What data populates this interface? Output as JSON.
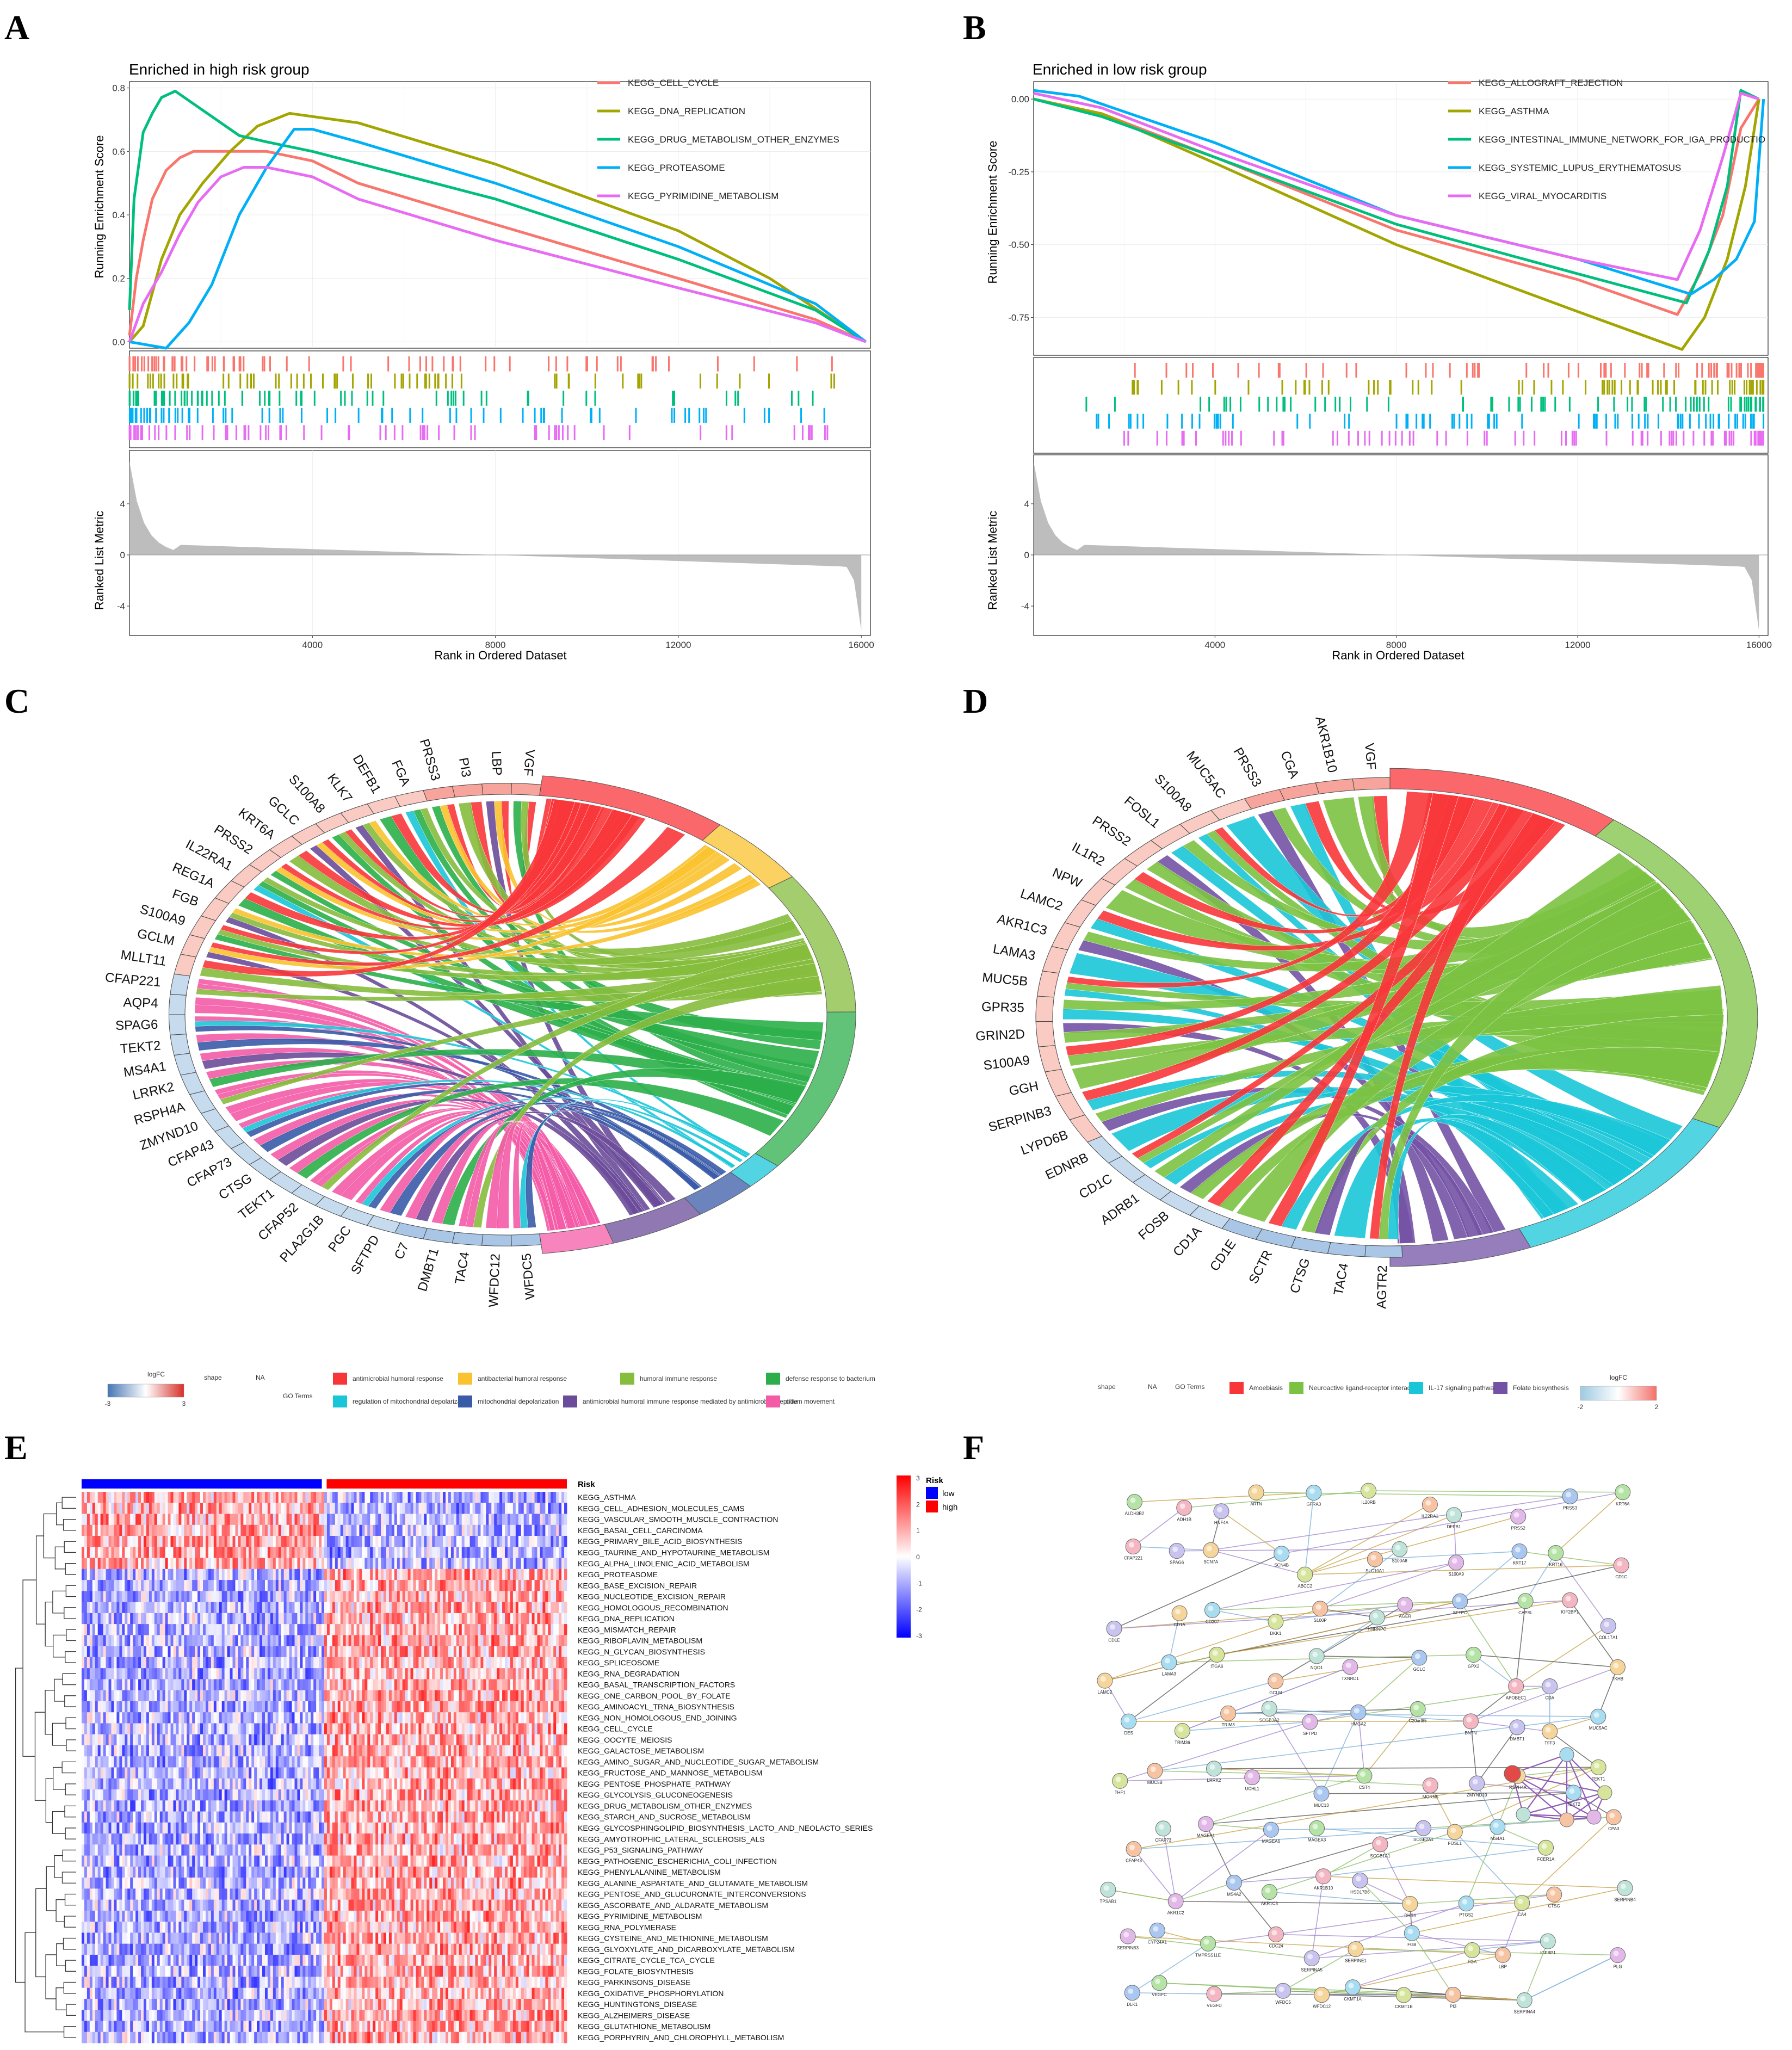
{
  "panels": {
    "A": {
      "letter": "A",
      "title": "Enriched in high risk group",
      "ylabel_es": "Running Enrichment Score",
      "ylabel_rank": "Ranked List Metric",
      "xlabel": "Rank in Ordered Dataset",
      "es_ticks": [
        "0.0",
        "0.2",
        "0.4",
        "0.6",
        "0.8"
      ],
      "rank_ticks": [
        "4",
        "0",
        "-4"
      ],
      "x_ticks": [
        "4000",
        "8000",
        "12000",
        "16000"
      ],
      "legend": [
        "KEGG_CELL_CYCLE",
        "KEGG_DNA_REPLICATION",
        "KEGG_DRUG_METABOLISM_OTHER_ENZYMES",
        "KEGG_PROTEASOME",
        "KEGG_PYRIMIDINE_METABOLISM"
      ]
    },
    "B": {
      "letter": "B",
      "title": "Enriched in low risk group",
      "ylabel_es": "Running Enrichment Score",
      "ylabel_rank": "Ranked List Metric",
      "xlabel": "Rank in Ordered Dataset",
      "es_ticks": [
        "0.00",
        "-0.25",
        "-0.50",
        "-0.75"
      ],
      "rank_ticks": [
        "4",
        "0",
        "-4"
      ],
      "x_ticks": [
        "4000",
        "8000",
        "12000",
        "16000"
      ],
      "legend": [
        "KEGG_ALLOGRAFT_REJECTION",
        "KEGG_ASTHMA",
        "KEGG_INTESTINAL_IMMUNE_NETWORK_FOR_IGA_PRODUCTIO",
        "KEGG_SYSTEMIC_LUPUS_ERYTHEMATOSUS",
        "KEGG_VIRAL_MYOCARDITIS"
      ]
    },
    "C": {
      "letter": "C",
      "genes": [
        "VGF",
        "LBP",
        "PI3",
        "PRSS3",
        "FGA",
        "DEFB1",
        "KLK7",
        "S100A8",
        "GCLC",
        "KRT6A",
        "PRSS2",
        "IL22RA1",
        "REG1A",
        "FGB",
        "S100A9",
        "GCLM",
        "MLLT11",
        "CFAP221",
        "AQP4",
        "SPAG6",
        "TEKT2",
        "MS4A1",
        "LRRK2",
        "RSPH4A",
        "ZMYND10",
        "CFAP43",
        "CFAP73",
        "CTSG",
        "TEKT1",
        "CFAP52",
        "PLA2G1B",
        "PGC",
        "SFTPD",
        "C7",
        "DMBT1",
        "TAC4",
        "WFDC12",
        "WFDC5"
      ],
      "legend_logfc": "logFC",
      "legend_shape": "shape",
      "legend_na": "NA",
      "legend_go": "GO Terms",
      "logfc_min": "-3",
      "logfc_max": "3",
      "terms": [
        "antimicrobial humoral response",
        "antibacterial humoral response",
        "humoral immune response",
        "defense response to bacterium",
        "regulation of mitochondrial depolarization",
        "mitochondrial depolarization",
        "antimicrobial humoral immune response mediated by antimicrobial peptide",
        "cilium movement"
      ]
    },
    "D": {
      "letter": "D",
      "genes": [
        "VGF",
        "AKR1B10",
        "CGA",
        "PRSS3",
        "MUC5AC",
        "S100A8",
        "FOSL1",
        "PRSS2",
        "IL1R2",
        "NPW",
        "LAMC2",
        "AKR1C3",
        "LAMA3",
        "MUC5B",
        "GPR35",
        "GRIN2D",
        "S100A9",
        "GGH",
        "SERPINB3",
        "LYPD6B",
        "EDNRB",
        "CD1C",
        "ADRB1",
        "FOSB",
        "CD1A",
        "CD1E",
        "SCTR",
        "CTSG",
        "TAC4",
        "AGTR2"
      ],
      "legend_shape": "shape",
      "legend_na": "NA",
      "legend_go": "GO Terms",
      "legend_logfc": "logFC",
      "logfc_min": "-2",
      "logfc_max": "2",
      "terms": [
        "Amoebiasis",
        "Neuroactive ligand-receptor interaction",
        "IL-17 signaling pathway",
        "Folate biosynthesis"
      ]
    },
    "E": {
      "letter": "E",
      "risk_label": "Risk",
      "risk_levels": [
        "low",
        "high"
      ],
      "scale_ticks": [
        "3",
        "2",
        "1",
        "0",
        "-1",
        "-2",
        "-3"
      ],
      "pathways": [
        "KEGG_ASTHMA",
        "KEGG_CELL_ADHESION_MOLECULES_CAMS",
        "KEGG_VASCULAR_SMOOTH_MUSCLE_CONTRACTION",
        "KEGG_BASAL_CELL_CARCINOMA",
        "KEGG_PRIMARY_BILE_ACID_BIOSYNTHESIS",
        "KEGG_TAURINE_AND_HYPOTAURINE_METABOLISM",
        "KEGG_ALPHA_LINOLENIC_ACID_METABOLISM",
        "KEGG_PROTEASOME",
        "KEGG_BASE_EXCISION_REPAIR",
        "KEGG_NUCLEOTIDE_EXCISION_REPAIR",
        "KEGG_HOMOLOGOUS_RECOMBINATION",
        "KEGG_DNA_REPLICATION",
        "KEGG_MISMATCH_REPAIR",
        "KEGG_RIBOFLAVIN_METABOLISM",
        "KEGG_N_GLYCAN_BIOSYNTHESIS",
        "KEGG_SPLICEOSOME",
        "KEGG_RNA_DEGRADATION",
        "KEGG_BASAL_TRANSCRIPTION_FACTORS",
        "KEGG_ONE_CARBON_POOL_BY_FOLATE",
        "KEGG_AMINOACYL_TRNA_BIOSYNTHESIS",
        "KEGG_NON_HOMOLOGOUS_END_JOINING",
        "KEGG_CELL_CYCLE",
        "KEGG_OOCYTE_MEIOSIS",
        "KEGG_GALACTOSE_METABOLISM",
        "KEGG_AMINO_SUGAR_AND_NUCLEOTIDE_SUGAR_METABOLISM",
        "KEGG_FRUCTOSE_AND_MANNOSE_METABOLISM",
        "KEGG_PENTOSE_PHOSPHATE_PATHWAY",
        "KEGG_GLYCOLYSIS_GLUCONEOGENESIS",
        "KEGG_DRUG_METABOLISM_OTHER_ENZYMES",
        "KEGG_STARCH_AND_SUCROSE_METABOLISM",
        "KEGG_GLYCOSPHINGOLIPID_BIOSYNTHESIS_LACTO_AND_NEOLACTO_SERIES",
        "KEGG_AMYOTROPHIC_LATERAL_SCLEROSIS_ALS",
        "KEGG_P53_SIGNALING_PATHWAY",
        "KEGG_PATHOGENIC_ESCHERICHIA_COLI_INFECTION",
        "KEGG_PHENYLALANINE_METABOLISM",
        "KEGG_ALANINE_ASPARTATE_AND_GLUTAMATE_METABOLISM",
        "KEGG_PENTOSE_AND_GLUCURONATE_INTERCONVERSIONS",
        "KEGG_ASCORBATE_AND_ALDARATE_METABOLISM",
        "KEGG_PYRIMIDINE_METABOLISM",
        "KEGG_RNA_POLYMERASE",
        "KEGG_CYSTEINE_AND_METHIONINE_METABOLISM",
        "KEGG_GLYOXYLATE_AND_DICARBOXYLATE_METABOLISM",
        "KEGG_CITRATE_CYCLE_TCA_CYCLE",
        "KEGG_FOLATE_BIOSYNTHESIS",
        "KEGG_PARKINSONS_DISEASE",
        "KEGG_OXIDATIVE_PHOSPHORYLATION",
        "KEGG_HUNTINGTONS_DISEASE",
        "KEGG_ALZHEIMERS_DISEASE",
        "KEGG_GLUTATHIONE_METABOLISM",
        "KEGG_PORPHYRIN_AND_CHLOROPHYLL_METABOLISM"
      ]
    },
    "F": {
      "letter": "F",
      "nodes": [
        "ALDH3B2",
        "ADH1B",
        "HNF4A",
        "ARTN",
        "GFRA3",
        "IL20RB",
        "IL22RA1",
        "DEFB1",
        "PRSS2",
        "PRSS3",
        "KRT6A",
        "CFAP221",
        "SPAG6",
        "SCN7A",
        "SCN4B",
        "ABCC2",
        "SLC10A1",
        "S100A8",
        "S100A9",
        "KRT17",
        "KRT16",
        "CD1C",
        "CD1E",
        "CD1A",
        "CD207",
        "DKK1",
        "S100P",
        "HNRNPC",
        "AGER",
        "SFTPC",
        "CAPSL",
        "IGF2BP1",
        "COL17A1",
        "LAMC2",
        "LAMA3",
        "ITGA6",
        "GCLM",
        "NQO1",
        "TXNRD1",
        "GCLC",
        "GPX2",
        "APOBEC1",
        "CDA",
        "TKHB",
        "DES",
        "TRIM36",
        "TRIM3",
        "SCGB3A2",
        "SFTPD",
        "HMGA2",
        "C20orf85",
        "BNTN",
        "DMBT1",
        "TFF3",
        "MUC5AC",
        "THF1",
        "MUC5B",
        "LRRK2",
        "UCHL1",
        "MUC13",
        "CST4",
        "MORN5",
        "ZMYND10",
        "RSPH4A",
        "TEKT2",
        "TEKT1",
        "CFAP43",
        "CFAP73",
        "MAGEA1",
        "MAGEA6",
        "MAGEA3",
        "SCGB1A1",
        "SCGB2A1",
        "FOSL1",
        "MS4A1",
        "FCER1A",
        "CPA3",
        "TPSAB1",
        "AKR1C2",
        "MS4A2",
        "AKR1C3",
        "AKR1B10",
        "HSD17B6",
        "DHS4",
        "PTGS2",
        "CA4",
        "CTSG",
        "SERPINB4",
        "SERPINB3",
        "CYP24A1",
        "TMPRSS11E",
        "CDC24",
        "SERPINA5",
        "SERPINE1",
        "FGB",
        "FGA",
        "LBP",
        "IGFBP1",
        "PLG",
        "DLK1",
        "VEGFC",
        "VEGFD",
        "WFDC5",
        "WFDC12",
        "CKMT1A",
        "CKMT1B",
        "PI3",
        "SERPINA4"
      ]
    }
  },
  "chart_data": [
    {
      "type": "line",
      "panel": "A",
      "title": "Enriched in high risk group",
      "xlabel": "Rank in Ordered Dataset",
      "ylabel": "Running Enrichment Score",
      "xlim": [
        0,
        16200
      ],
      "ylim": [
        -0.02,
        0.82
      ],
      "series": [
        {
          "name": "KEGG_CELL_CYCLE",
          "color": "#F8766D",
          "x": [
            0,
            150,
            300,
            500,
            800,
            1100,
            1400,
            2000,
            3000,
            4000,
            5000,
            8000,
            12000,
            15000,
            16100
          ],
          "y": [
            0.02,
            0.2,
            0.32,
            0.45,
            0.54,
            0.58,
            0.6,
            0.6,
            0.6,
            0.57,
            0.5,
            0.37,
            0.2,
            0.07,
            0
          ]
        },
        {
          "name": "KEGG_DNA_REPLICATION",
          "color": "#A3A500",
          "x": [
            0,
            300,
            700,
            1100,
            1600,
            2200,
            2800,
            3500,
            4000,
            5000,
            8000,
            12000,
            14000,
            16100
          ],
          "y": [
            0,
            0.05,
            0.26,
            0.4,
            0.5,
            0.6,
            0.68,
            0.72,
            0.71,
            0.69,
            0.56,
            0.35,
            0.2,
            0
          ]
        },
        {
          "name": "KEGG_DRUG_METABOLISM_OTHER_ENZYMES",
          "color": "#00BF7D",
          "x": [
            0,
            100,
            300,
            500,
            700,
            1000,
            1300,
            1700,
            2100,
            2400,
            3000,
            4000,
            8000,
            12000,
            15000,
            16100
          ],
          "y": [
            0.1,
            0.45,
            0.66,
            0.72,
            0.77,
            0.79,
            0.76,
            0.72,
            0.68,
            0.65,
            0.63,
            0.6,
            0.45,
            0.26,
            0.1,
            0
          ]
        },
        {
          "name": "KEGG_PROTEASOME",
          "color": "#00B0F6",
          "x": [
            0,
            800,
            1300,
            1800,
            2400,
            3000,
            3600,
            4000,
            5000,
            8000,
            12000,
            15000,
            16100
          ],
          "y": [
            0,
            -0.02,
            0.06,
            0.18,
            0.4,
            0.55,
            0.67,
            0.67,
            0.63,
            0.5,
            0.3,
            0.12,
            0
          ]
        },
        {
          "name": "KEGG_PYRIMIDINE_METABOLISM",
          "color": "#E76BF3",
          "x": [
            0,
            300,
            700,
            1100,
            1500,
            2000,
            2500,
            3000,
            4000,
            5000,
            8000,
            12000,
            15000,
            16100
          ],
          "y": [
            0,
            0.12,
            0.22,
            0.34,
            0.44,
            0.52,
            0.55,
            0.55,
            0.52,
            0.45,
            0.32,
            0.17,
            0.06,
            0
          ]
        }
      ]
    },
    {
      "type": "line",
      "panel": "B",
      "title": "Enriched in low risk group",
      "xlabel": "Rank in Ordered Dataset",
      "ylabel": "Running Enrichment Score",
      "xlim": [
        0,
        16200
      ],
      "ylim": [
        -0.88,
        0.06
      ],
      "series": [
        {
          "name": "KEGG_ALLOGRAFT_REJECTION",
          "color": "#F8766D",
          "x": [
            0,
            1500,
            4000,
            8000,
            12000,
            14200,
            14700,
            15200,
            15600,
            16000
          ],
          "y": [
            0,
            -0.05,
            -0.2,
            -0.45,
            -0.62,
            -0.74,
            -0.6,
            -0.4,
            -0.1,
            0
          ]
        },
        {
          "name": "KEGG_ASTHMA",
          "color": "#A3A500",
          "x": [
            0,
            1500,
            4000,
            8000,
            12000,
            14300,
            14800,
            15300,
            15700,
            16000
          ],
          "y": [
            0,
            -0.05,
            -0.22,
            -0.5,
            -0.73,
            -0.86,
            -0.75,
            -0.55,
            -0.3,
            0
          ]
        },
        {
          "name": "KEGG_INTESTINAL_IMMUNE_NETWORK_FOR_IGA_PRODUCTIO",
          "color": "#00BF7D",
          "x": [
            0,
            1500,
            4000,
            8000,
            12000,
            14400,
            14900,
            15300,
            15600,
            16000
          ],
          "y": [
            0,
            -0.06,
            -0.2,
            -0.43,
            -0.6,
            -0.7,
            -0.52,
            -0.3,
            0.03,
            0
          ]
        },
        {
          "name": "KEGG_SYSTEMIC_LUPUS_ERYTHEMATOSUS",
          "color": "#00B0F6",
          "x": [
            0,
            1000,
            4000,
            8000,
            12000,
            14500,
            15000,
            15500,
            15900,
            16100
          ],
          "y": [
            0.03,
            0.01,
            -0.15,
            -0.4,
            -0.55,
            -0.67,
            -0.62,
            -0.55,
            -0.42,
            0
          ]
        },
        {
          "name": "KEGG_VIRAL_MYOCARDITIS",
          "color": "#E76BF3",
          "x": [
            0,
            1500,
            4000,
            8000,
            12000,
            14200,
            14700,
            15200,
            15600,
            16000
          ],
          "y": [
            0.02,
            -0.03,
            -0.18,
            -0.4,
            -0.55,
            -0.62,
            -0.45,
            -0.2,
            0.02,
            0
          ]
        }
      ]
    },
    {
      "type": "table",
      "panel": "C",
      "description_none": true,
      "genes": [
        "VGF",
        "LBP",
        "PI3",
        "PRSS3",
        "FGA",
        "DEFB1",
        "KLK7",
        "S100A8",
        "GCLC",
        "KRT6A",
        "PRSS2",
        "IL22RA1",
        "REG1A",
        "FGB",
        "S100A9",
        "GCLM",
        "MLLT11",
        "CFAP221",
        "AQP4",
        "SPAG6",
        "TEKT2",
        "MS4A1",
        "LRRK2",
        "RSPH4A",
        "ZMYND10",
        "CFAP43",
        "CFAP73",
        "CTSG",
        "TEKT1",
        "CFAP52",
        "PLA2G1B",
        "PGC",
        "SFTPD",
        "C7",
        "DMBT1",
        "TAC4",
        "WFDC12",
        "WFDC5"
      ],
      "gene_logfc_sign": [
        1,
        1,
        1,
        1,
        1,
        1,
        1,
        1,
        1,
        1,
        1,
        1,
        1,
        1,
        1,
        1,
        1,
        -1,
        -1,
        -1,
        -1,
        -1,
        -1,
        -1,
        -1,
        -1,
        -1,
        -1,
        -1,
        -1,
        -1,
        -1,
        -1,
        -1,
        -1,
        -1,
        -1,
        -1
      ],
      "terms": [
        "antimicrobial humoral response",
        "antibacterial humoral response",
        "humoral immune response",
        "defense response to bacterium",
        "regulation of mitochondrial depolarization",
        "mitochondrial depolarization",
        "antimicrobial humoral immune response mediated by antimicrobial peptide",
        "cilium movement"
      ],
      "term_colors": [
        "#F8363A",
        "#F9C22E",
        "#86BD3D",
        "#2CAF4A",
        "#19C6D8",
        "#3A5BA8",
        "#6B4C9A",
        "#F45BA7"
      ]
    },
    {
      "type": "table",
      "panel": "D",
      "genes": [
        "VGF",
        "AKR1B10",
        "CGA",
        "PRSS3",
        "MUC5AC",
        "S100A8",
        "FOSL1",
        "PRSS2",
        "IL1R2",
        "NPW",
        "LAMC2",
        "AKR1C3",
        "LAMA3",
        "MUC5B",
        "GPR35",
        "GRIN2D",
        "S100A9",
        "GGH",
        "SERPINB3",
        "LYPD6B",
        "EDNRB",
        "CD1C",
        "ADRB1",
        "FOSB",
        "CD1A",
        "CD1E",
        "SCTR",
        "CTSG",
        "TAC4",
        "AGTR2"
      ],
      "gene_logfc_sign": [
        1,
        1,
        1,
        1,
        1,
        1,
        1,
        1,
        1,
        1,
        1,
        1,
        1,
        1,
        1,
        1,
        1,
        1,
        1,
        1,
        -1,
        -1,
        -1,
        -1,
        -1,
        -1,
        -1,
        -1,
        -1,
        -1
      ],
      "terms": [
        "Amoebiasis",
        "Neuroactive ligand-receptor interaction",
        "IL-17 signaling pathway",
        "Folate biosynthesis"
      ],
      "term_colors": [
        "#F8363A",
        "#7CC242",
        "#19C6D8",
        "#7352A5"
      ]
    },
    {
      "type": "heatmap",
      "panel": "E",
      "risk_groups": [
        "low",
        "high"
      ],
      "scale": [
        -3,
        3
      ],
      "rows": [
        "KEGG_ASTHMA",
        "KEGG_CELL_ADHESION_MOLECULES_CAMS",
        "KEGG_VASCULAR_SMOOTH_MUSCLE_CONTRACTION",
        "KEGG_BASAL_CELL_CARCINOMA",
        "KEGG_PRIMARY_BILE_ACID_BIOSYNTHESIS",
        "KEGG_TAURINE_AND_HYPOTAURINE_METABOLISM",
        "KEGG_ALPHA_LINOLENIC_ACID_METABOLISM",
        "KEGG_PROTEASOME"
      ],
      "pattern": "first 7 rows higher in low-risk group; remaining rows higher in high-risk group"
    }
  ]
}
